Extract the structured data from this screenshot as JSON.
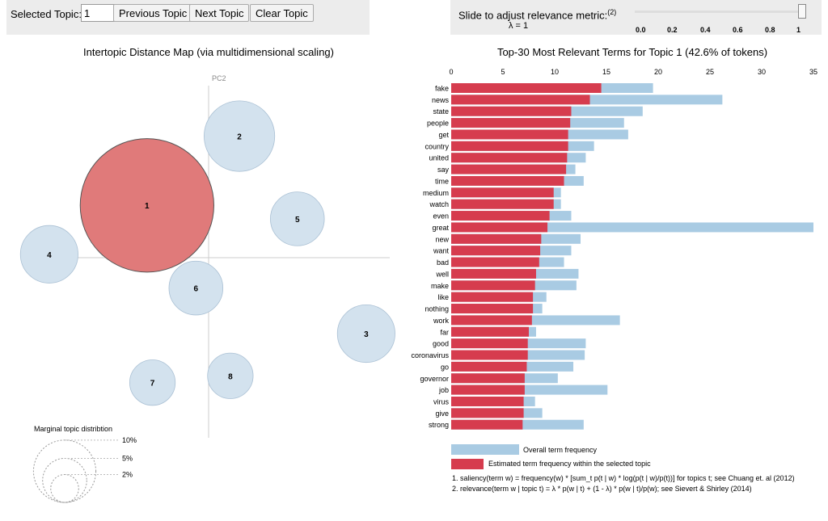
{
  "controls": {
    "selected_topic_label": "Selected Topic:",
    "selected_topic_value": "1",
    "previous_label": "Previous Topic",
    "next_label": "Next Topic",
    "clear_label": "Clear Topic",
    "slider_label": "Slide to adjust relevance metric:",
    "slider_note": "(2)",
    "lambda_text": "λ = 1",
    "lambda_value": 1,
    "slider_ticks": [
      "0.0",
      "0.2",
      "0.4",
      "0.6",
      "0.8",
      "1"
    ]
  },
  "footnotes": {
    "one": "1. saliency(term w) = frequency(w) * [sum_t p(t | w) * log(p(t | w)/p(t))] for topics t; see Chuang et. al (2012)",
    "two": "2. relevance(term w | topic t) = λ * p(w | t) + (1 - λ) * p(w | t)/p(w); see Sievert & Shirley (2014)"
  },
  "colors": {
    "selected": "#e07a7a",
    "overall": "#a9cbe3",
    "topic_circle": "#d3e2ee",
    "estimated": "#d63c4e"
  },
  "chart_data": [
    {
      "type": "scatter",
      "title": "Intertopic Distance Map (via multidimensional scaling)",
      "xlabel": "PC1",
      "ylabel": "PC2",
      "selected_topic": 1,
      "points": [
        {
          "label": "1",
          "x": -0.34,
          "y": 0.31,
          "size": 43
        },
        {
          "label": "2",
          "x": 0.17,
          "y": 0.72,
          "size": 12
        },
        {
          "label": "3",
          "x": 0.87,
          "y": -0.45,
          "size": 8
        },
        {
          "label": "4",
          "x": -0.88,
          "y": 0.02,
          "size": 8
        },
        {
          "label": "5",
          "x": 0.49,
          "y": 0.23,
          "size": 7
        },
        {
          "label": "6",
          "x": -0.07,
          "y": -0.18,
          "size": 7
        },
        {
          "label": "7",
          "x": -0.31,
          "y": -0.74,
          "size": 5
        },
        {
          "label": "8",
          "x": 0.12,
          "y": -0.7,
          "size": 5
        }
      ],
      "xlim": [
        -1.0,
        1.0
      ],
      "ylim": [
        -1.0,
        1.0
      ],
      "legend": {
        "title": "Marginal topic distribtion",
        "labels": [
          "2%",
          "5%",
          "10%"
        ],
        "values": [
          2,
          5,
          10
        ]
      }
    },
    {
      "type": "bar",
      "title": "Top-30 Most Relevant Terms for Topic 1 (42.6% of tokens)",
      "xlim": [
        0,
        35
      ],
      "ticks": [
        0,
        5,
        10,
        15,
        20,
        25,
        30,
        35
      ],
      "categories": [
        "fake",
        "news",
        "state",
        "people",
        "get",
        "country",
        "united",
        "say",
        "time",
        "medium",
        "watch",
        "even",
        "great",
        "new",
        "want",
        "bad",
        "well",
        "make",
        "like",
        "nothing",
        "work",
        "far",
        "good",
        "coronavirus",
        "go",
        "governor",
        "job",
        "virus",
        "give",
        "strong"
      ],
      "series": [
        {
          "name": "Overall term frequency",
          "values": [
            19.5,
            26.2,
            18.5,
            16.7,
            17.1,
            13.8,
            13.0,
            12.0,
            12.8,
            10.6,
            10.6,
            11.6,
            35.0,
            12.5,
            11.6,
            10.9,
            12.3,
            12.1,
            9.2,
            8.8,
            16.3,
            8.2,
            13.0,
            12.9,
            11.8,
            10.3,
            15.1,
            8.1,
            8.8,
            12.8
          ]
        },
        {
          "name": "Estimated term frequency within the selected topic",
          "values": [
            14.5,
            13.4,
            11.6,
            11.5,
            11.3,
            11.3,
            11.2,
            11.1,
            10.9,
            9.9,
            9.9,
            9.5,
            9.3,
            8.7,
            8.6,
            8.5,
            8.2,
            8.1,
            7.9,
            7.9,
            7.8,
            7.5,
            7.4,
            7.4,
            7.3,
            7.1,
            7.1,
            7.0,
            7.0,
            6.9
          ]
        }
      ]
    }
  ]
}
